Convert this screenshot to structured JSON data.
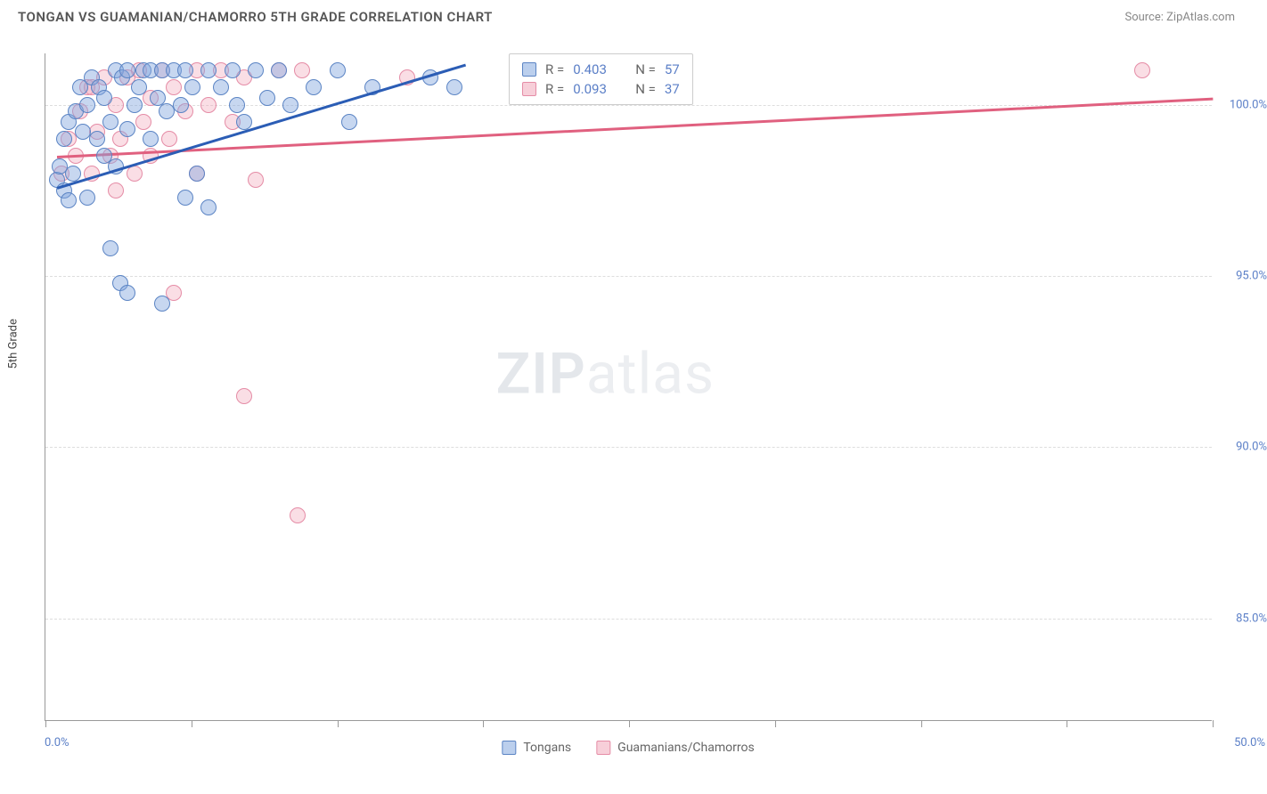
{
  "title": "TONGAN VS GUAMANIAN/CHAMORRO 5TH GRADE CORRELATION CHART",
  "source": "Source: ZipAtlas.com",
  "watermark_bold": "ZIP",
  "watermark_light": "atlas",
  "axes": {
    "y_title": "5th Grade",
    "x_min_label": "0.0%",
    "x_max_label": "50.0%",
    "x_range": [
      0,
      50
    ],
    "y_range": [
      82,
      101.5
    ],
    "y_ticks": [
      {
        "value": 85,
        "label": "85.0%"
      },
      {
        "value": 90,
        "label": "90.0%"
      },
      {
        "value": 95,
        "label": "95.0%"
      },
      {
        "value": 100,
        "label": "100.0%"
      }
    ],
    "x_tick_positions": [
      0,
      6.25,
      12.5,
      18.75,
      25,
      31.25,
      37.5,
      43.75,
      50
    ],
    "grid_color": "#dddddd"
  },
  "series": {
    "tongans": {
      "label": "Tongans",
      "color_fill": "rgba(131,167,222,0.45)",
      "color_stroke": "#5b84c4",
      "R": "0.403",
      "N": "57",
      "trend": {
        "x1": 0.5,
        "y1": 97.6,
        "x2": 18,
        "y2": 101.2,
        "color": "#2b5db5"
      },
      "points": [
        [
          0.5,
          97.8
        ],
        [
          0.6,
          98.2
        ],
        [
          0.8,
          97.5
        ],
        [
          0.8,
          99.0
        ],
        [
          1.0,
          97.2
        ],
        [
          1.0,
          99.5
        ],
        [
          1.2,
          98.0
        ],
        [
          1.3,
          99.8
        ],
        [
          1.5,
          100.5
        ],
        [
          1.6,
          99.2
        ],
        [
          1.8,
          100.0
        ],
        [
          1.8,
          97.3
        ],
        [
          2.0,
          100.8
        ],
        [
          2.2,
          99.0
        ],
        [
          2.3,
          100.5
        ],
        [
          2.5,
          98.5
        ],
        [
          2.5,
          100.2
        ],
        [
          2.8,
          99.5
        ],
        [
          3.0,
          101.0
        ],
        [
          3.0,
          98.2
        ],
        [
          3.3,
          100.8
        ],
        [
          3.5,
          99.3
        ],
        [
          3.5,
          101.0
        ],
        [
          3.8,
          100.0
        ],
        [
          4.0,
          100.5
        ],
        [
          4.2,
          101.0
        ],
        [
          4.5,
          99.0
        ],
        [
          4.5,
          101.0
        ],
        [
          4.8,
          100.2
        ],
        [
          5.0,
          101.0
        ],
        [
          5.2,
          99.8
        ],
        [
          5.5,
          101.0
        ],
        [
          5.8,
          100.0
        ],
        [
          6.0,
          101.0
        ],
        [
          6.3,
          100.5
        ],
        [
          6.5,
          98.0
        ],
        [
          7.0,
          101.0
        ],
        [
          7.0,
          97.0
        ],
        [
          7.5,
          100.5
        ],
        [
          8.0,
          101.0
        ],
        [
          8.2,
          100.0
        ],
        [
          8.5,
          99.5
        ],
        [
          9.0,
          101.0
        ],
        [
          9.5,
          100.2
        ],
        [
          10.0,
          101.0
        ],
        [
          10.5,
          100.0
        ],
        [
          11.5,
          100.5
        ],
        [
          12.5,
          101.0
        ],
        [
          13.0,
          99.5
        ],
        [
          14.0,
          100.5
        ],
        [
          16.5,
          100.8
        ],
        [
          17.5,
          100.5
        ],
        [
          2.8,
          95.8
        ],
        [
          3.2,
          94.8
        ],
        [
          3.5,
          94.5
        ],
        [
          5.0,
          94.2
        ],
        [
          6.0,
          97.3
        ]
      ]
    },
    "guamanians": {
      "label": "Guamanians/Chamorros",
      "color_fill": "rgba(240,160,180,0.35)",
      "color_stroke": "#e58ca6",
      "R": "0.093",
      "N": "37",
      "trend": {
        "x1": 0.5,
        "y1": 98.5,
        "x2": 50,
        "y2": 100.2,
        "color": "#e0607f"
      },
      "points": [
        [
          0.7,
          98.0
        ],
        [
          1.0,
          99.0
        ],
        [
          1.3,
          98.5
        ],
        [
          1.5,
          99.8
        ],
        [
          1.8,
          100.5
        ],
        [
          2.0,
          98.0
        ],
        [
          2.2,
          99.2
        ],
        [
          2.5,
          100.8
        ],
        [
          2.8,
          98.5
        ],
        [
          3.0,
          100.0
        ],
        [
          3.2,
          99.0
        ],
        [
          3.5,
          100.8
        ],
        [
          3.8,
          98.0
        ],
        [
          4.0,
          101.0
        ],
        [
          4.2,
          99.5
        ],
        [
          4.5,
          100.2
        ],
        [
          5.0,
          101.0
        ],
        [
          5.3,
          99.0
        ],
        [
          5.5,
          100.5
        ],
        [
          6.0,
          99.8
        ],
        [
          6.5,
          101.0
        ],
        [
          7.0,
          100.0
        ],
        [
          7.5,
          101.0
        ],
        [
          8.0,
          99.5
        ],
        [
          8.5,
          100.8
        ],
        [
          9.0,
          97.8
        ],
        [
          10.0,
          101.0
        ],
        [
          11.0,
          101.0
        ],
        [
          15.5,
          100.8
        ],
        [
          5.5,
          94.5
        ],
        [
          8.5,
          91.5
        ],
        [
          10.8,
          88.0
        ],
        [
          47.0,
          101.0
        ],
        [
          2.0,
          100.5
        ],
        [
          3.0,
          97.5
        ],
        [
          4.5,
          98.5
        ],
        [
          6.5,
          98.0
        ]
      ]
    }
  },
  "legend_top": {
    "r_label": "R =",
    "n_label": "N ="
  },
  "legend_bottom": [
    {
      "swatch": "blue",
      "label": "Tongans"
    },
    {
      "swatch": "pink",
      "label": "Guamanians/Chamorros"
    }
  ]
}
